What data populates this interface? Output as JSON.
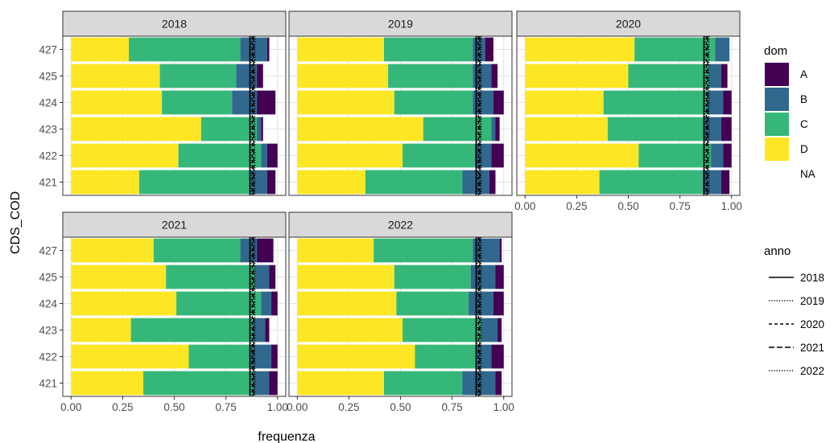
{
  "chart_data": {
    "type": "bar",
    "title": "",
    "xlabel": "frequenza",
    "ylabel": "CDS_COD",
    "xlim": [
      -0.04,
      1.04
    ],
    "xticks": [
      "0.00",
      "0.25",
      "0.50",
      "0.75",
      "1.00"
    ],
    "categories": [
      "421",
      "422",
      "423",
      "424",
      "425",
      "427"
    ],
    "panels": [
      {
        "title": "2018",
        "bars": {
          "427": {
            "D": 0.28,
            "C": 0.54,
            "B": 0.13,
            "A": 0.01
          },
          "425": {
            "D": 0.43,
            "C": 0.37,
            "B": 0.1,
            "A": 0.03
          },
          "424": {
            "D": 0.44,
            "C": 0.34,
            "B": 0.12,
            "A": 0.09
          },
          "423": {
            "D": 0.63,
            "C": 0.27,
            "B": 0.02,
            "A": 0.01
          },
          "422": {
            "D": 0.52,
            "C": 0.4,
            "B": 0.03,
            "A": 0.05
          },
          "421": {
            "D": 0.33,
            "C": 0.54,
            "B": 0.08,
            "A": 0.04
          }
        }
      },
      {
        "title": "2019",
        "bars": {
          "427": {
            "D": 0.42,
            "C": 0.43,
            "B": 0.06,
            "A": 0.04
          },
          "425": {
            "D": 0.44,
            "C": 0.41,
            "B": 0.09,
            "A": 0.03
          },
          "424": {
            "D": 0.47,
            "C": 0.38,
            "B": 0.1,
            "A": 0.05
          },
          "423": {
            "D": 0.61,
            "C": 0.33,
            "B": 0.02,
            "A": 0.02
          },
          "422": {
            "D": 0.51,
            "C": 0.35,
            "B": 0.08,
            "A": 0.06
          },
          "421": {
            "D": 0.33,
            "C": 0.47,
            "B": 0.13,
            "A": 0.03
          }
        }
      },
      {
        "title": "2020",
        "bars": {
          "427": {
            "D": 0.53,
            "C": 0.39,
            "B": 0.07,
            "A": 0.0
          },
          "425": {
            "D": 0.5,
            "C": 0.39,
            "B": 0.06,
            "A": 0.03
          },
          "424": {
            "D": 0.38,
            "C": 0.5,
            "B": 0.08,
            "A": 0.04
          },
          "423": {
            "D": 0.4,
            "C": 0.47,
            "B": 0.08,
            "A": 0.05
          },
          "422": {
            "D": 0.55,
            "C": 0.35,
            "B": 0.06,
            "A": 0.04
          },
          "421": {
            "D": 0.36,
            "C": 0.5,
            "B": 0.09,
            "A": 0.04
          }
        }
      },
      {
        "title": "2021",
        "bars": {
          "427": {
            "D": 0.4,
            "C": 0.42,
            "B": 0.08,
            "A": 0.08
          },
          "425": {
            "D": 0.46,
            "C": 0.43,
            "B": 0.07,
            "A": 0.03
          },
          "424": {
            "D": 0.51,
            "C": 0.41,
            "B": 0.05,
            "A": 0.03
          },
          "423": {
            "D": 0.29,
            "C": 0.59,
            "B": 0.06,
            "A": 0.02
          },
          "422": {
            "D": 0.57,
            "C": 0.3,
            "B": 0.1,
            "A": 0.03
          },
          "421": {
            "D": 0.35,
            "C": 0.53,
            "B": 0.08,
            "A": 0.04
          }
        }
      },
      {
        "title": "2022",
        "bars": {
          "427": {
            "D": 0.37,
            "C": 0.48,
            "B": 0.13,
            "A": 0.01
          },
          "425": {
            "D": 0.47,
            "C": 0.37,
            "B": 0.12,
            "A": 0.04
          },
          "424": {
            "D": 0.48,
            "C": 0.35,
            "B": 0.12,
            "A": 0.05
          },
          "423": {
            "D": 0.51,
            "C": 0.38,
            "B": 0.08,
            "A": 0.02
          },
          "422": {
            "D": 0.57,
            "C": 0.3,
            "B": 0.07,
            "A": 0.06
          },
          "421": {
            "D": 0.42,
            "C": 0.38,
            "B": 0.16,
            "A": 0.03
          }
        }
      }
    ],
    "vlines": [
      {
        "anno": "2018",
        "x": 0.866,
        "linetype": "solid"
      },
      {
        "anno": "2019",
        "x": 0.871,
        "linetype": "dotted"
      },
      {
        "anno": "2020",
        "x": 0.878,
        "linetype": "dashed"
      },
      {
        "anno": "2021",
        "x": 0.884,
        "linetype": "longdash"
      },
      {
        "anno": "2022",
        "x": 0.89,
        "linetype": "dotted"
      }
    ],
    "legend_fill": {
      "title": "dom",
      "entries": [
        {
          "label": "A",
          "color": "#440154"
        },
        {
          "label": "B",
          "color": "#31688e"
        },
        {
          "label": "C",
          "color": "#35b779"
        },
        {
          "label": "D",
          "color": "#fde725"
        },
        {
          "label": "NA",
          "color": "none"
        }
      ]
    },
    "legend_line": {
      "title": "anno",
      "entries": [
        "2018",
        "2019",
        "2020",
        "2021",
        "2022"
      ]
    },
    "legend_placement": "right",
    "grid": true
  }
}
